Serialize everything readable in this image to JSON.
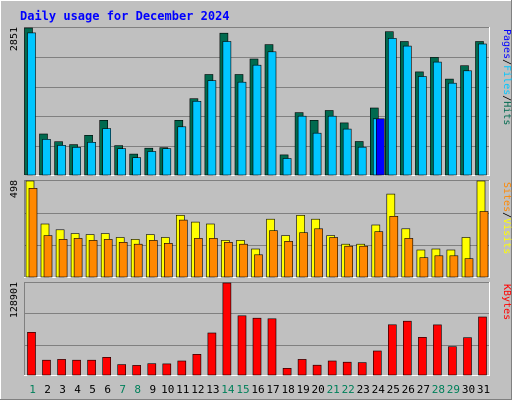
{
  "chart_data": {
    "type": "bar",
    "title": "Daily usage for December 2024",
    "categories": [
      "1",
      "2",
      "3",
      "4",
      "5",
      "6",
      "7",
      "8",
      "9",
      "10",
      "11",
      "12",
      "13",
      "14",
      "15",
      "16",
      "17",
      "18",
      "19",
      "20",
      "21",
      "22",
      "23",
      "24",
      "25",
      "26",
      "27",
      "28",
      "29",
      "30",
      "31"
    ],
    "weekend_days": [
      "1",
      "7",
      "8",
      "14",
      "15",
      "21",
      "22",
      "28",
      "29"
    ],
    "panels": [
      {
        "id": "hits",
        "max_label": "2851",
        "ylim": [
          0,
          2851
        ],
        "side_label": [
          "Pages",
          "/",
          "Files",
          "/",
          "Hits"
        ],
        "series": [
          {
            "name": "Hits",
            "color": "#006a4f",
            "values": [
              2851,
              795,
              645,
              590,
              770,
              1060,
              570,
              405,
              520,
              530,
              1060,
              1480,
              1950,
              2750,
              1950,
              2250,
              2530,
              390,
              1210,
              1060,
              1250,
              1010,
              650,
              1300,
              2780,
              2590,
              2000,
              2280,
              1860,
              2120,
              2590
            ]
          },
          {
            "name": "Files",
            "color": "#00c6ff",
            "values": [
              2755,
              690,
              575,
              535,
              635,
              900,
              510,
              335,
              455,
              510,
              935,
              1430,
              1830,
              2590,
              1800,
              2130,
              2390,
              320,
              1140,
              810,
              1140,
              890,
              540,
              1090,
              2650,
              2500,
              1910,
              2190,
              1780,
              2020,
              2540
            ]
          },
          {
            "name": "Pages",
            "color": "#0000ff",
            "values": [
              0,
              0,
              0,
              0,
              0,
              0,
              0,
              0,
              0,
              0,
              0,
              0,
              0,
              0,
              0,
              0,
              0,
              0,
              0,
              0,
              0,
              0,
              0,
              1090,
              0,
              0,
              0,
              0,
              0,
              0,
              0
            ]
          }
        ]
      },
      {
        "id": "visits",
        "max_label": "498",
        "ylim": [
          0,
          498
        ],
        "side_label": [
          "Sites",
          "/",
          "Visits"
        ],
        "series": [
          {
            "name": "Visits",
            "color": "#ffff00",
            "values": [
              498,
              275,
              245,
              225,
              220,
              225,
              205,
              195,
              220,
              205,
              320,
              285,
              275,
              190,
              190,
              145,
              300,
              215,
              320,
              300,
              215,
              170,
              170,
              270,
              430,
              250,
              140,
              145,
              140,
              205,
              498
            ]
          },
          {
            "name": "Sites",
            "color": "#ff8800",
            "values": [
              460,
              215,
              195,
              200,
              190,
              195,
              180,
              170,
              190,
              175,
              295,
              200,
              200,
              180,
              170,
              115,
              240,
              185,
              230,
              250,
              205,
              160,
              160,
              235,
              315,
              200,
              100,
              110,
              110,
              95,
              340
            ]
          }
        ]
      },
      {
        "id": "kbytes",
        "max_label": "128901",
        "ylim": [
          0,
          128901
        ],
        "side_label": [
          "KBytes"
        ],
        "series": [
          {
            "name": "KBytes",
            "color": "#ff0000",
            "values": [
              59800,
              20800,
              21800,
              20800,
              20800,
              24800,
              14600,
              13400,
              15800,
              15600,
              19600,
              29000,
              58800,
              128901,
              83000,
              79600,
              78700,
              9400,
              21800,
              13800,
              19600,
              18000,
              17400,
              33600,
              70400,
              75400,
              52800,
              70200,
              39600,
              52200,
              81200
            ]
          }
        ]
      }
    ]
  }
}
